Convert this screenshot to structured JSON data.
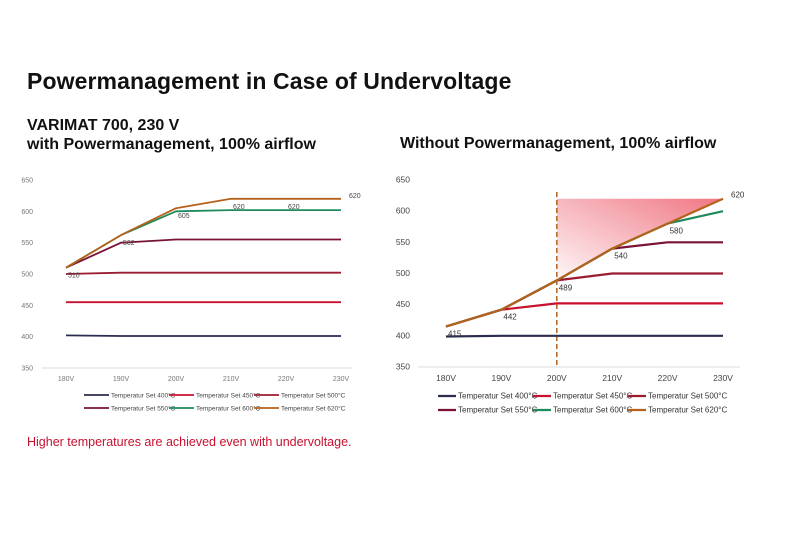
{
  "page": {
    "title": "Powermanagement in Case of Undervoltage",
    "left_subtitle_line1": "VARIMAT 700, 230 V",
    "left_subtitle_line2": "with Powermanagement, 100% airflow",
    "right_subtitle": "Without Powermanagement, 100% airflow",
    "footnote": "Higher temperatures are achieved even with undervoltage."
  },
  "chart_data": [
    {
      "type": "line",
      "title": "VARIMAT 700, 230 V with Powermanagement, 100% airflow",
      "categories": [
        "180V",
        "190V",
        "200V",
        "210V",
        "220V",
        "230V"
      ],
      "ylim": [
        350,
        650
      ],
      "yticks": [
        350,
        400,
        450,
        500,
        550,
        600,
        650
      ],
      "grid": false,
      "legend_position": "bottom",
      "series": [
        {
          "name": "Temperatur Set 400°C",
          "color": "#2b2d4f",
          "values": [
            402,
            401,
            401,
            401,
            401,
            401
          ]
        },
        {
          "name": "Temperatur Set 450°C",
          "color": "#c8102e",
          "values": [
            455,
            455,
            455,
            455,
            455,
            455
          ]
        },
        {
          "name": "Temperatur Set 500°C",
          "color": "#9b1b30",
          "values": [
            500,
            502,
            502,
            502,
            502,
            502
          ]
        },
        {
          "name": "Temperatur Set 550°C",
          "color": "#7a1236",
          "values": [
            510,
            550,
            555,
            555,
            555,
            555
          ]
        },
        {
          "name": "Temperatur Set 600°C",
          "color": "#1f8a5b",
          "values": [
            510,
            562,
            600,
            602,
            602,
            602
          ]
        },
        {
          "name": "Temperatur Set 620°C",
          "color": "#b5621b",
          "values": [
            510,
            562,
            605,
            620,
            620,
            620
          ]
        }
      ],
      "data_labels": [
        {
          "category": "180V",
          "value": 510,
          "text": "510"
        },
        {
          "category": "190V",
          "value": 562,
          "text": "562"
        },
        {
          "category": "200V",
          "value": 605,
          "text": "605"
        },
        {
          "category": "210V",
          "value": 620,
          "text": "620"
        },
        {
          "category": "220V",
          "value": 620,
          "text": "620"
        },
        {
          "category": "230V",
          "value": 620,
          "text": "620"
        }
      ]
    },
    {
      "type": "line",
      "title": "Without Powermanagement, 100% airflow",
      "categories": [
        "180V",
        "190V",
        "200V",
        "210V",
        "220V",
        "230V"
      ],
      "ylim": [
        350,
        650
      ],
      "yticks": [
        350,
        400,
        450,
        500,
        550,
        600,
        650
      ],
      "grid": false,
      "legend_position": "bottom",
      "series": [
        {
          "name": "Temperatur Set 400°C",
          "color": "#2b2d4f",
          "values": [
            399,
            400,
            400,
            400,
            400,
            400
          ]
        },
        {
          "name": "Temperatur Set 450°C",
          "color": "#c8102e",
          "values": [
            415,
            442,
            452,
            452,
            452,
            452
          ]
        },
        {
          "name": "Temperatur Set 500°C",
          "color": "#9b1b30",
          "values": [
            415,
            442,
            489,
            500,
            500,
            500
          ]
        },
        {
          "name": "Temperatur Set 550°C",
          "color": "#7a1236",
          "values": [
            415,
            442,
            489,
            540,
            550,
            550
          ]
        },
        {
          "name": "Temperatur Set 600°C",
          "color": "#1f8a5b",
          "values": [
            415,
            442,
            489,
            540,
            580,
            600
          ]
        },
        {
          "name": "Temperatur Set 620°C",
          "color": "#b5621b",
          "values": [
            415,
            442,
            489,
            540,
            580,
            620
          ]
        }
      ],
      "data_labels": [
        {
          "category": "180V",
          "value": 415,
          "text": "415"
        },
        {
          "category": "190V",
          "value": 442,
          "text": "442"
        },
        {
          "category": "200V",
          "value": 489,
          "text": "489"
        },
        {
          "category": "210V",
          "value": 540,
          "text": "540"
        },
        {
          "category": "220V",
          "value": 580,
          "text": "580"
        },
        {
          "category": "230V",
          "value": 620,
          "text": "620"
        }
      ],
      "annotations": {
        "vertical_dashed_line_at": "200V",
        "shaded_region": {
          "from": "200V",
          "to": "230V",
          "top_value": 620,
          "color": "#ef6f7c"
        }
      }
    }
  ]
}
